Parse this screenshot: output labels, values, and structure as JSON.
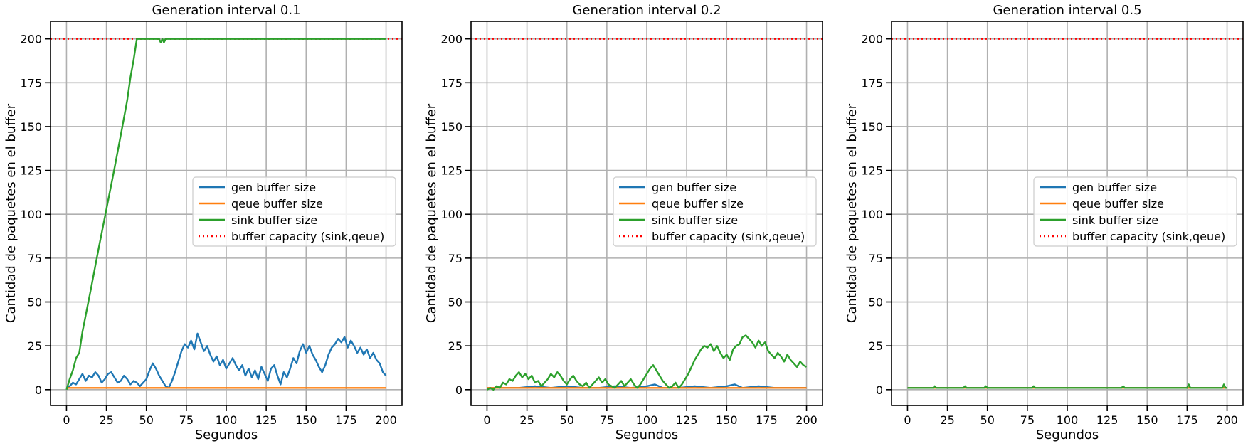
{
  "figure": {
    "capacity": 200,
    "colors": {
      "gen": "#1f77b4",
      "queue": "#ff7f0e",
      "sink": "#2ca02c",
      "capacity": "#ff0000",
      "grid": "#b0b0b0"
    }
  },
  "chart_data": [
    {
      "type": "line",
      "title": "Generation interval 0.1",
      "xlabel": "Segundos",
      "ylabel": "Cantidad de paquetes en el buffer",
      "xlim": [
        -10,
        210
      ],
      "ylim": [
        -9,
        210
      ],
      "xticks": [
        0,
        25,
        50,
        75,
        100,
        125,
        150,
        175,
        200
      ],
      "yticks": [
        0,
        25,
        50,
        75,
        100,
        125,
        150,
        175,
        200
      ],
      "grid": true,
      "legend_position": "center-right",
      "series": [
        {
          "name": "gen buffer size",
          "color": "#1f77b4",
          "style": "solid",
          "x": [
            0,
            2,
            4,
            6,
            8,
            10,
            12,
            14,
            16,
            18,
            20,
            22,
            24,
            26,
            28,
            30,
            32,
            34,
            36,
            38,
            40,
            42,
            44,
            46,
            48,
            50,
            52,
            54,
            56,
            58,
            60,
            62,
            64,
            66,
            68,
            70,
            72,
            74,
            76,
            78,
            80,
            82,
            84,
            86,
            88,
            90,
            92,
            94,
            96,
            98,
            100,
            102,
            104,
            106,
            108,
            110,
            112,
            114,
            116,
            118,
            120,
            122,
            124,
            126,
            128,
            130,
            132,
            134,
            136,
            138,
            140,
            142,
            144,
            146,
            148,
            150,
            152,
            154,
            156,
            158,
            160,
            162,
            164,
            166,
            168,
            170,
            172,
            174,
            176,
            178,
            180,
            182,
            184,
            186,
            188,
            190,
            192,
            194,
            196,
            198,
            200
          ],
          "y": [
            1,
            2,
            4,
            3,
            6,
            9,
            5,
            8,
            7,
            10,
            8,
            4,
            6,
            9,
            10,
            7,
            4,
            5,
            8,
            6,
            3,
            5,
            4,
            2,
            4,
            6,
            11,
            15,
            12,
            8,
            5,
            2,
            1,
            5,
            10,
            16,
            22,
            26,
            24,
            28,
            23,
            32,
            27,
            22,
            25,
            20,
            16,
            19,
            14,
            17,
            12,
            15,
            18,
            14,
            11,
            14,
            8,
            12,
            7,
            11,
            6,
            13,
            9,
            5,
            12,
            14,
            8,
            3,
            10,
            7,
            12,
            18,
            15,
            22,
            26,
            21,
            25,
            20,
            17,
            13,
            10,
            14,
            20,
            24,
            26,
            29,
            27,
            30,
            24,
            28,
            25,
            21,
            24,
            20,
            23,
            18,
            21,
            17,
            15,
            10,
            8
          ]
        },
        {
          "name": "qeue buffer size",
          "color": "#ff7f0e",
          "style": "solid",
          "x": [
            0,
            200
          ],
          "y": [
            1,
            1
          ]
        },
        {
          "name": "sink buffer size",
          "color": "#2ca02c",
          "style": "solid",
          "x": [
            0,
            2,
            4,
            6,
            8,
            10,
            15,
            20,
            25,
            30,
            35,
            38,
            40,
            42,
            44,
            50,
            55,
            58,
            59,
            60,
            61,
            62,
            65,
            70,
            80,
            100,
            120,
            140,
            160,
            180,
            200
          ],
          "y": [
            0,
            6,
            11,
            18,
            21,
            33,
            56,
            80,
            103,
            126,
            150,
            165,
            178,
            188,
            200,
            200,
            200,
            200,
            198,
            200,
            198,
            200,
            200,
            200,
            200,
            200,
            200,
            200,
            200,
            200,
            200
          ]
        },
        {
          "name": "buffer capacity (sink,qeue)",
          "color": "#ff0000",
          "style": "dotted",
          "x": [
            -10,
            210
          ],
          "y": [
            200,
            200
          ]
        }
      ]
    },
    {
      "type": "line",
      "title": "Generation interval 0.2",
      "xlabel": "Segundos",
      "ylabel": "Cantidad de paquetes en el buffer",
      "xlim": [
        -10,
        210
      ],
      "ylim": [
        -9,
        210
      ],
      "xticks": [
        0,
        25,
        50,
        75,
        100,
        125,
        150,
        175,
        200
      ],
      "yticks": [
        0,
        25,
        50,
        75,
        100,
        125,
        150,
        175,
        200
      ],
      "grid": true,
      "legend_position": "center-right",
      "series": [
        {
          "name": "gen buffer size",
          "color": "#1f77b4",
          "style": "solid",
          "x": [
            0,
            10,
            20,
            30,
            40,
            50,
            60,
            70,
            80,
            90,
            100,
            105,
            110,
            120,
            130,
            140,
            150,
            155,
            160,
            170,
            180,
            190,
            200
          ],
          "y": [
            1,
            1,
            1,
            2,
            1,
            2,
            1,
            1,
            2,
            1,
            2,
            3,
            1,
            1,
            2,
            1,
            2,
            3,
            1,
            2,
            1,
            1,
            1
          ]
        },
        {
          "name": "qeue buffer size",
          "color": "#ff7f0e",
          "style": "solid",
          "x": [
            0,
            200
          ],
          "y": [
            1,
            1
          ]
        },
        {
          "name": "sink buffer size",
          "color": "#2ca02c",
          "style": "solid",
          "x": [
            0,
            2,
            4,
            6,
            8,
            10,
            12,
            14,
            16,
            18,
            20,
            22,
            24,
            26,
            28,
            30,
            32,
            34,
            36,
            38,
            40,
            42,
            44,
            46,
            48,
            50,
            52,
            54,
            56,
            58,
            60,
            62,
            64,
            66,
            68,
            70,
            72,
            74,
            76,
            78,
            80,
            82,
            84,
            86,
            88,
            90,
            92,
            94,
            96,
            98,
            100,
            102,
            104,
            106,
            108,
            110,
            112,
            114,
            116,
            118,
            120,
            122,
            124,
            126,
            128,
            130,
            132,
            134,
            136,
            138,
            140,
            142,
            144,
            146,
            148,
            150,
            152,
            154,
            156,
            158,
            160,
            162,
            164,
            166,
            168,
            170,
            172,
            174,
            176,
            178,
            180,
            182,
            184,
            186,
            188,
            190,
            192,
            194,
            196,
            198,
            200
          ],
          "y": [
            0,
            1,
            0,
            2,
            1,
            4,
            3,
            6,
            5,
            8,
            10,
            7,
            9,
            6,
            8,
            4,
            5,
            2,
            4,
            6,
            9,
            7,
            10,
            8,
            5,
            3,
            6,
            8,
            5,
            3,
            2,
            4,
            1,
            3,
            5,
            7,
            4,
            6,
            3,
            2,
            1,
            3,
            5,
            2,
            4,
            6,
            3,
            1,
            3,
            6,
            9,
            12,
            14,
            11,
            8,
            5,
            3,
            1,
            2,
            4,
            1,
            3,
            6,
            9,
            13,
            17,
            20,
            23,
            25,
            24,
            26,
            22,
            25,
            21,
            18,
            20,
            17,
            23,
            25,
            26,
            30,
            31,
            29,
            27,
            24,
            28,
            25,
            27,
            22,
            20,
            18,
            21,
            19,
            16,
            20,
            17,
            15,
            13,
            16,
            14,
            13
          ]
        },
        {
          "name": "buffer capacity (sink,qeue)",
          "color": "#ff0000",
          "style": "dotted",
          "x": [
            -10,
            210
          ],
          "y": [
            200,
            200
          ]
        }
      ]
    },
    {
      "type": "line",
      "title": "Generation interval 0.5",
      "xlabel": "Segundos",
      "ylabel": "Cantidad de paquetes en el buffer",
      "xlim": [
        -10,
        210
      ],
      "ylim": [
        -9,
        210
      ],
      "xticks": [
        0,
        25,
        50,
        75,
        100,
        125,
        150,
        175,
        200
      ],
      "yticks": [
        0,
        25,
        50,
        75,
        100,
        125,
        150,
        175,
        200
      ],
      "grid": true,
      "legend_position": "center-right",
      "series": [
        {
          "name": "gen buffer size",
          "color": "#1f77b4",
          "style": "solid",
          "x": [
            0,
            200
          ],
          "y": [
            1,
            1
          ]
        },
        {
          "name": "qeue buffer size",
          "color": "#ff7f0e",
          "style": "solid",
          "x": [
            0,
            200
          ],
          "y": [
            1,
            1
          ]
        },
        {
          "name": "sink buffer size",
          "color": "#2ca02c",
          "style": "solid",
          "x": [
            0,
            10,
            16,
            17,
            18,
            30,
            35,
            36,
            37,
            45,
            48,
            49,
            50,
            60,
            70,
            78,
            79,
            80,
            100,
            120,
            134,
            135,
            136,
            150,
            160,
            175,
            176,
            177,
            190,
            197,
            198,
            199,
            200
          ],
          "y": [
            1,
            1,
            1,
            2,
            1,
            1,
            1,
            2,
            1,
            1,
            1,
            2,
            1,
            1,
            1,
            1,
            2,
            1,
            1,
            1,
            1,
            2,
            1,
            1,
            1,
            1,
            3,
            1,
            1,
            1,
            3,
            1,
            1
          ]
        },
        {
          "name": "buffer capacity (sink,qeue)",
          "color": "#ff0000",
          "style": "dotted",
          "x": [
            -10,
            210
          ],
          "y": [
            200,
            200
          ]
        }
      ]
    }
  ]
}
